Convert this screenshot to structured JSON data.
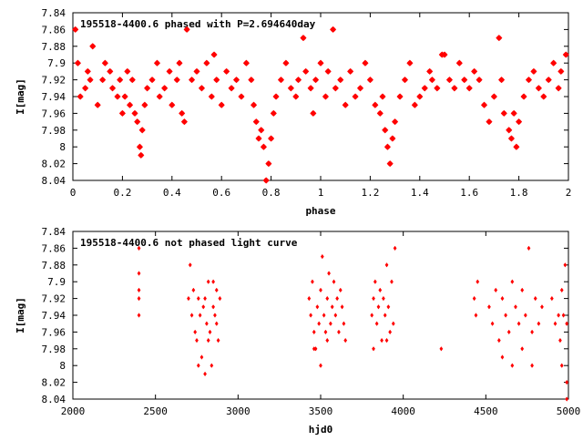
{
  "colors": {
    "marker": "#ff0000",
    "frame": "#000000",
    "background": "#ffffff"
  },
  "chart_data": [
    {
      "type": "scatter",
      "title": "195518-4400.6 phased with P=2.694640day",
      "xlabel": "phase",
      "ylabel": "I[mag]",
      "xlim": [
        0,
        2
      ],
      "ylim": [
        7.84,
        8.04
      ],
      "y_inverted": true,
      "x_ticks": [
        "0",
        "0.2",
        "0.4",
        "0.6",
        "0.8",
        "1",
        "1.2",
        "1.4",
        "1.6",
        "1.8",
        "2"
      ],
      "x_tick_values": [
        0,
        0.2,
        0.4,
        0.6,
        0.8,
        1,
        1.2,
        1.4,
        1.6,
        1.8,
        2
      ],
      "y_ticks": [
        "7.84",
        "7.86",
        "7.88",
        "7.9",
        "7.92",
        "7.94",
        "7.96",
        "7.98",
        "8",
        "8.02",
        "8.04"
      ],
      "y_tick_values": [
        7.84,
        7.86,
        7.88,
        7.9,
        7.92,
        7.94,
        7.96,
        7.98,
        8.0,
        8.02,
        8.04
      ],
      "grid": false,
      "marker": "star",
      "series": [
        {
          "points": [
            [
              0.01,
              7.86
            ],
            [
              0.02,
              7.9
            ],
            [
              0.03,
              7.94
            ],
            [
              0.05,
              7.93
            ],
            [
              0.06,
              7.91
            ],
            [
              0.07,
              7.92
            ],
            [
              0.08,
              7.88
            ],
            [
              0.1,
              7.95
            ],
            [
              0.12,
              7.92
            ],
            [
              0.13,
              7.9
            ],
            [
              0.15,
              7.91
            ],
            [
              0.16,
              7.93
            ],
            [
              0.18,
              7.94
            ],
            [
              0.19,
              7.92
            ],
            [
              0.2,
              7.96
            ],
            [
              0.21,
              7.94
            ],
            [
              0.22,
              7.91
            ],
            [
              0.23,
              7.95
            ],
            [
              0.24,
              7.92
            ],
            [
              0.25,
              7.96
            ],
            [
              0.26,
              7.97
            ],
            [
              0.27,
              8.0
            ],
            [
              0.275,
              8.01
            ],
            [
              0.28,
              7.98
            ],
            [
              0.29,
              7.95
            ],
            [
              0.3,
              7.93
            ],
            [
              0.32,
              7.92
            ],
            [
              0.34,
              7.9
            ],
            [
              0.35,
              7.94
            ],
            [
              0.37,
              7.93
            ],
            [
              0.39,
              7.91
            ],
            [
              0.4,
              7.95
            ],
            [
              0.42,
              7.92
            ],
            [
              0.43,
              7.9
            ],
            [
              0.44,
              7.96
            ],
            [
              0.45,
              7.97
            ],
            [
              0.46,
              7.86
            ],
            [
              0.48,
              7.92
            ],
            [
              0.5,
              7.91
            ],
            [
              0.52,
              7.93
            ],
            [
              0.54,
              7.9
            ],
            [
              0.56,
              7.94
            ],
            [
              0.57,
              7.89
            ],
            [
              0.58,
              7.92
            ],
            [
              0.6,
              7.95
            ],
            [
              0.62,
              7.91
            ],
            [
              0.64,
              7.93
            ],
            [
              0.66,
              7.92
            ],
            [
              0.68,
              7.94
            ],
            [
              0.7,
              7.9
            ],
            [
              0.72,
              7.92
            ],
            [
              0.73,
              7.95
            ],
            [
              0.74,
              7.97
            ],
            [
              0.75,
              7.99
            ],
            [
              0.76,
              7.98
            ],
            [
              0.77,
              8.0
            ],
            [
              0.78,
              8.04
            ],
            [
              0.79,
              8.02
            ],
            [
              0.8,
              7.99
            ],
            [
              0.81,
              7.96
            ],
            [
              0.82,
              7.94
            ],
            [
              0.84,
              7.92
            ],
            [
              0.86,
              7.9
            ],
            [
              0.88,
              7.93
            ],
            [
              0.9,
              7.94
            ],
            [
              0.91,
              7.92
            ],
            [
              0.93,
              7.87
            ],
            [
              0.94,
              7.91
            ],
            [
              0.96,
              7.93
            ],
            [
              0.97,
              7.96
            ],
            [
              0.98,
              7.92
            ],
            [
              1.0,
              7.9
            ],
            [
              1.02,
              7.94
            ],
            [
              1.03,
              7.91
            ],
            [
              1.05,
              7.86
            ],
            [
              1.06,
              7.93
            ],
            [
              1.08,
              7.92
            ],
            [
              1.1,
              7.95
            ],
            [
              1.12,
              7.91
            ],
            [
              1.14,
              7.94
            ],
            [
              1.16,
              7.93
            ],
            [
              1.18,
              7.9
            ],
            [
              1.2,
              7.92
            ],
            [
              1.22,
              7.95
            ],
            [
              1.24,
              7.96
            ],
            [
              1.25,
              7.94
            ],
            [
              1.26,
              7.98
            ],
            [
              1.27,
              8.0
            ],
            [
              1.28,
              8.02
            ],
            [
              1.29,
              7.99
            ],
            [
              1.3,
              7.97
            ],
            [
              1.32,
              7.94
            ],
            [
              1.34,
              7.92
            ],
            [
              1.36,
              7.9
            ],
            [
              1.38,
              7.95
            ],
            [
              1.4,
              7.94
            ],
            [
              1.42,
              7.93
            ],
            [
              1.44,
              7.91
            ],
            [
              1.45,
              7.92
            ],
            [
              1.47,
              7.93
            ],
            [
              1.49,
              7.89
            ],
            [
              1.5,
              7.89
            ],
            [
              1.52,
              7.92
            ],
            [
              1.54,
              7.93
            ],
            [
              1.56,
              7.9
            ],
            [
              1.58,
              7.92
            ],
            [
              1.6,
              7.93
            ],
            [
              1.62,
              7.91
            ],
            [
              1.64,
              7.92
            ],
            [
              1.66,
              7.95
            ],
            [
              1.68,
              7.97
            ],
            [
              1.7,
              7.94
            ],
            [
              1.72,
              7.87
            ],
            [
              1.73,
              7.92
            ],
            [
              1.74,
              7.96
            ],
            [
              1.76,
              7.98
            ],
            [
              1.77,
              7.99
            ],
            [
              1.78,
              7.96
            ],
            [
              1.79,
              8.0
            ],
            [
              1.8,
              7.97
            ],
            [
              1.82,
              7.94
            ],
            [
              1.84,
              7.92
            ],
            [
              1.86,
              7.91
            ],
            [
              1.88,
              7.93
            ],
            [
              1.9,
              7.94
            ],
            [
              1.92,
              7.92
            ],
            [
              1.94,
              7.9
            ],
            [
              1.96,
              7.93
            ],
            [
              1.97,
              7.91
            ],
            [
              1.99,
              7.89
            ]
          ]
        }
      ]
    },
    {
      "type": "scatter",
      "title": "195518-4400.6 not phased light curve",
      "xlabel": "hjd0",
      "ylabel": "I[mag]",
      "xlim": [
        2000,
        5000
      ],
      "ylim": [
        7.84,
        8.04
      ],
      "y_inverted": true,
      "x_ticks": [
        "2000",
        "2500",
        "3000",
        "3500",
        "4000",
        "4500",
        "5000"
      ],
      "x_tick_values": [
        2000,
        2500,
        3000,
        3500,
        4000,
        4500,
        5000
      ],
      "y_ticks": [
        "7.84",
        "7.86",
        "7.88",
        "7.9",
        "7.92",
        "7.94",
        "7.96",
        "7.98",
        "8",
        "8.02",
        "8.04"
      ],
      "y_tick_values": [
        7.84,
        7.86,
        7.88,
        7.9,
        7.92,
        7.94,
        7.96,
        7.98,
        8.0,
        8.02,
        8.04
      ],
      "grid": false,
      "marker": "diamond",
      "series": [
        {
          "points": [
            [
              2400,
              7.86
            ],
            [
              2400,
              7.89
            ],
            [
              2400,
              7.91
            ],
            [
              2400,
              7.92
            ],
            [
              2400,
              7.94
            ],
            [
              2700,
              7.92
            ],
            [
              2710,
              7.88
            ],
            [
              2720,
              7.94
            ],
            [
              2730,
              7.91
            ],
            [
              2740,
              7.96
            ],
            [
              2750,
              7.97
            ],
            [
              2760,
              7.92
            ],
            [
              2770,
              7.94
            ],
            [
              2780,
              7.99
            ],
            [
              2790,
              7.93
            ],
            [
              2800,
              7.92
            ],
            [
              2810,
              7.95
            ],
            [
              2820,
              7.9
            ],
            [
              2830,
              7.96
            ],
            [
              2840,
              8.0
            ],
            [
              2850,
              7.93
            ],
            [
              2860,
              7.94
            ],
            [
              2870,
              7.91
            ],
            [
              2880,
              7.97
            ],
            [
              2890,
              7.92
            ],
            [
              2800,
              8.01
            ],
            [
              2760,
              8.0
            ],
            [
              2820,
              7.97
            ],
            [
              2850,
              7.9
            ],
            [
              2870,
              7.95
            ],
            [
              3430,
              7.92
            ],
            [
              3440,
              7.94
            ],
            [
              3450,
              7.9
            ],
            [
              3460,
              7.96
            ],
            [
              3470,
              7.98
            ],
            [
              3480,
              7.93
            ],
            [
              3490,
              7.95
            ],
            [
              3500,
              7.91
            ],
            [
              3510,
              7.87
            ],
            [
              3520,
              7.94
            ],
            [
              3530,
              7.96
            ],
            [
              3540,
              7.92
            ],
            [
              3550,
              7.89
            ],
            [
              3560,
              7.95
            ],
            [
              3570,
              7.93
            ],
            [
              3580,
              7.9
            ],
            [
              3590,
              7.94
            ],
            [
              3600,
              7.92
            ],
            [
              3610,
              7.96
            ],
            [
              3620,
              7.91
            ],
            [
              3630,
              7.93
            ],
            [
              3640,
              7.95
            ],
            [
              3650,
              7.97
            ],
            [
              3500,
              8.0
            ],
            [
              3460,
              7.98
            ],
            [
              3540,
              7.97
            ],
            [
              3810,
              7.94
            ],
            [
              3820,
              7.92
            ],
            [
              3830,
              7.9
            ],
            [
              3840,
              7.95
            ],
            [
              3850,
              7.93
            ],
            [
              3860,
              7.91
            ],
            [
              3870,
              7.97
            ],
            [
              3880,
              7.92
            ],
            [
              3890,
              7.94
            ],
            [
              3900,
              7.88
            ],
            [
              3910,
              7.93
            ],
            [
              3920,
              7.96
            ],
            [
              3930,
              7.9
            ],
            [
              3940,
              7.95
            ],
            [
              3950,
              7.86
            ],
            [
              3820,
              7.98
            ],
            [
              3900,
              7.97
            ],
            [
              4230,
              7.98
            ],
            [
              4430,
              7.92
            ],
            [
              4440,
              7.94
            ],
            [
              4450,
              7.9
            ],
            [
              4520,
              7.93
            ],
            [
              4540,
              7.95
            ],
            [
              4560,
              7.91
            ],
            [
              4580,
              7.97
            ],
            [
              4600,
              7.92
            ],
            [
              4620,
              7.94
            ],
            [
              4640,
              7.96
            ],
            [
              4660,
              7.9
            ],
            [
              4680,
              7.93
            ],
            [
              4700,
              7.95
            ],
            [
              4720,
              7.91
            ],
            [
              4740,
              7.94
            ],
            [
              4760,
              7.86
            ],
            [
              4780,
              7.96
            ],
            [
              4800,
              7.92
            ],
            [
              4820,
              7.95
            ],
            [
              4840,
              7.93
            ],
            [
              4600,
              7.99
            ],
            [
              4660,
              8.0
            ],
            [
              4720,
              7.98
            ],
            [
              4780,
              8.0
            ],
            [
              4900,
              7.92
            ],
            [
              4920,
              7.95
            ],
            [
              4940,
              7.94
            ],
            [
              4950,
              7.97
            ],
            [
              4960,
              7.91
            ],
            [
              4970,
              7.94
            ],
            [
              4980,
              7.88
            ],
            [
              4990,
              7.95
            ],
            [
              4960,
              8.0
            ],
            [
              4990,
              8.02
            ],
            [
              4990,
              8.04
            ]
          ]
        }
      ]
    }
  ]
}
